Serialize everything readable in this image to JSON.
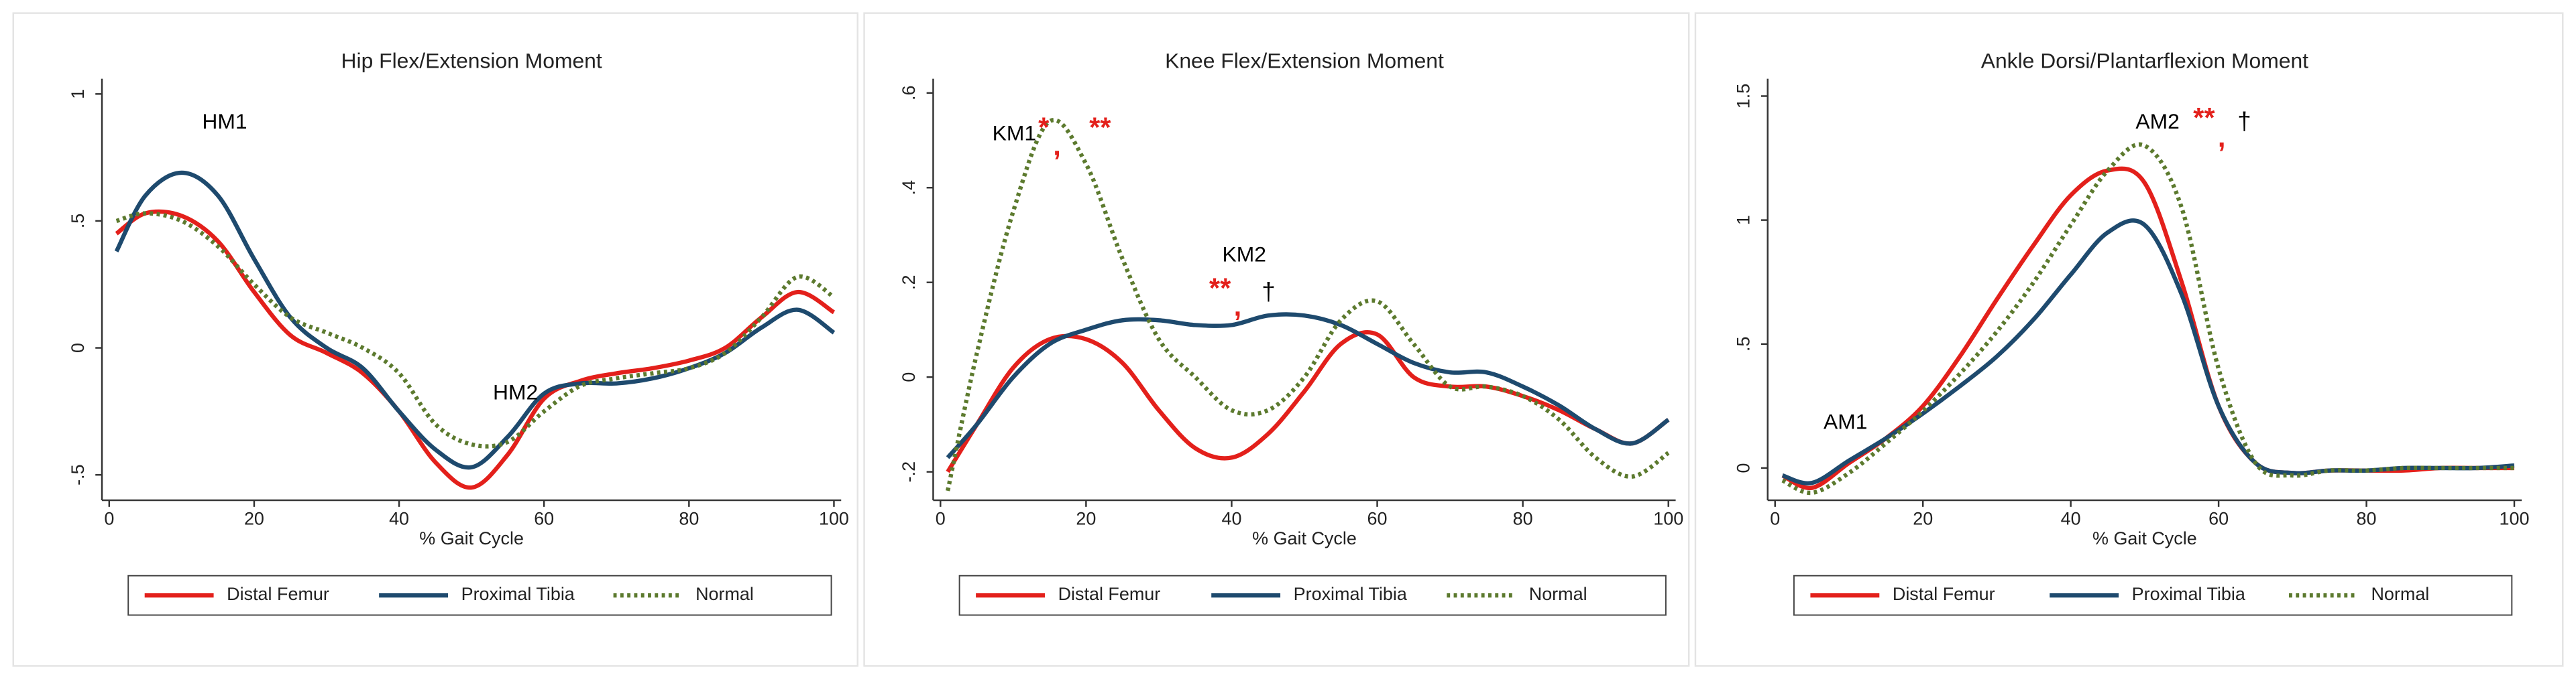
{
  "chart_data": [
    {
      "type": "line",
      "title": "Hip Flex/Extension Moment",
      "x_label": "% Gait Cycle",
      "x": [
        1,
        5,
        10,
        15,
        20,
        25,
        30,
        35,
        40,
        45,
        50,
        55,
        60,
        65,
        70,
        75,
        80,
        85,
        90,
        95,
        100
      ],
      "series": [
        {
          "name": "Distal Femur",
          "color": "#e3201b",
          "style": "solid",
          "values": [
            0.45,
            0.53,
            0.52,
            0.42,
            0.22,
            0.05,
            -0.02,
            -0.1,
            -0.25,
            -0.45,
            -0.55,
            -0.42,
            -0.2,
            -0.13,
            -0.1,
            -0.08,
            -0.05,
            0.0,
            0.12,
            0.22,
            0.14
          ]
        },
        {
          "name": "Proximal Tibia",
          "color": "#1e4a6e",
          "style": "solid",
          "values": [
            0.38,
            0.6,
            0.69,
            0.6,
            0.35,
            0.12,
            0.0,
            -0.08,
            -0.25,
            -0.4,
            -0.47,
            -0.35,
            -0.18,
            -0.14,
            -0.14,
            -0.12,
            -0.08,
            -0.02,
            0.08,
            0.15,
            0.06
          ]
        },
        {
          "name": "Normal",
          "color": "#5c7a2e",
          "style": "dotted",
          "values": [
            0.5,
            0.53,
            0.5,
            0.4,
            0.25,
            0.12,
            0.06,
            0.0,
            -0.1,
            -0.3,
            -0.38,
            -0.37,
            -0.25,
            -0.15,
            -0.12,
            -0.1,
            -0.08,
            -0.02,
            0.12,
            0.28,
            0.2
          ]
        }
      ],
      "xlim": [
        -1,
        101
      ],
      "ylim": [
        -0.6,
        1.06
      ],
      "xticks": [
        0,
        20,
        40,
        60,
        80,
        100
      ],
      "yticks": [
        {
          "value": -0.5,
          "label": "-.5"
        },
        0,
        {
          "value": 0.5,
          "label": ".5"
        },
        1
      ],
      "annotations": [
        {
          "text": "HM1",
          "color": "#000000"
        },
        {
          "text": "HM2",
          "color": "#000000"
        }
      ],
      "legend": "bottom"
    },
    {
      "type": "line",
      "title": "Knee Flex/Extension Moment",
      "x_label": "% Gait Cycle",
      "x": [
        1,
        5,
        10,
        15,
        20,
        25,
        30,
        35,
        40,
        45,
        50,
        55,
        60,
        65,
        70,
        75,
        80,
        85,
        90,
        95,
        100
      ],
      "series": [
        {
          "name": "Distal Femur",
          "color": "#e3201b",
          "style": "solid",
          "values": [
            -0.2,
            -0.1,
            0.02,
            0.08,
            0.08,
            0.03,
            -0.07,
            -0.15,
            -0.17,
            -0.12,
            -0.03,
            0.07,
            0.09,
            0.0,
            -0.02,
            -0.02,
            -0.04,
            -0.07,
            -0.11,
            -0.14,
            -0.09
          ]
        },
        {
          "name": "Proximal Tibia",
          "color": "#1e4a6e",
          "style": "solid",
          "values": [
            -0.17,
            -0.1,
            0.0,
            0.07,
            0.1,
            0.12,
            0.12,
            0.11,
            0.11,
            0.13,
            0.13,
            0.11,
            0.07,
            0.03,
            0.01,
            0.01,
            -0.02,
            -0.06,
            -0.11,
            -0.14,
            -0.09
          ]
        },
        {
          "name": "Normal",
          "color": "#5c7a2e",
          "style": "dotted",
          "values": [
            -0.24,
            0.05,
            0.35,
            0.54,
            0.45,
            0.25,
            0.08,
            0.0,
            -0.07,
            -0.07,
            0.0,
            0.12,
            0.16,
            0.07,
            -0.02,
            -0.02,
            -0.04,
            -0.09,
            -0.17,
            -0.21,
            -0.16
          ]
        }
      ],
      "xlim": [
        -1,
        101
      ],
      "ylim": [
        -0.26,
        0.63
      ],
      "xticks": [
        0,
        20,
        40,
        60,
        80,
        100
      ],
      "yticks": [
        {
          "value": -0.2,
          "label": "-.2"
        },
        0,
        {
          "value": 0.2,
          "label": ".2"
        },
        {
          "value": 0.4,
          "label": ".4"
        },
        {
          "value": 0.6,
          "label": ".6"
        }
      ],
      "annotations": [
        {
          "text": "KM1",
          "color": "#000000"
        },
        {
          "text": "*",
          "color": "#e3201b"
        },
        {
          "text": ",",
          "color": "#e3201b"
        },
        {
          "text": "**",
          "color": "#e3201b"
        },
        {
          "text": "KM2",
          "color": "#000000"
        },
        {
          "text": "**",
          "color": "#e3201b"
        },
        {
          "text": ",",
          "color": "#e3201b"
        },
        {
          "text": "†",
          "color": "#000000"
        }
      ],
      "legend": "bottom"
    },
    {
      "type": "line",
      "title": "Ankle Dorsi/Plantarflexion Moment",
      "x_label": "% Gait Cycle",
      "x": [
        1,
        5,
        10,
        15,
        20,
        25,
        30,
        35,
        40,
        45,
        50,
        55,
        60,
        65,
        70,
        75,
        80,
        85,
        90,
        95,
        100
      ],
      "series": [
        {
          "name": "Distal Femur",
          "color": "#e3201b",
          "style": "solid",
          "values": [
            -0.03,
            -0.08,
            0.02,
            0.12,
            0.25,
            0.45,
            0.68,
            0.9,
            1.1,
            1.2,
            1.15,
            0.75,
            0.25,
            0.02,
            -0.02,
            -0.01,
            -0.01,
            -0.01,
            0.0,
            0.0,
            0.0
          ]
        },
        {
          "name": "Proximal Tibia",
          "color": "#1e4a6e",
          "style": "solid",
          "values": [
            -0.03,
            -0.06,
            0.03,
            0.12,
            0.22,
            0.33,
            0.45,
            0.6,
            0.78,
            0.95,
            0.98,
            0.7,
            0.25,
            0.02,
            -0.02,
            -0.01,
            -0.01,
            0.0,
            0.0,
            0.0,
            0.01
          ]
        },
        {
          "name": "Normal",
          "color": "#5c7a2e",
          "style": "dotted",
          "values": [
            -0.05,
            -0.1,
            -0.02,
            0.1,
            0.23,
            0.38,
            0.55,
            0.75,
            0.98,
            1.2,
            1.3,
            1.05,
            0.4,
            0.02,
            -0.03,
            -0.01,
            -0.01,
            0.0,
            0.0,
            0.0,
            0.0
          ]
        }
      ],
      "xlim": [
        -1,
        101
      ],
      "ylim": [
        -0.13,
        1.57
      ],
      "xticks": [
        0,
        20,
        40,
        60,
        80,
        100
      ],
      "yticks": [
        0,
        {
          "value": 0.5,
          "label": ".5"
        },
        1,
        {
          "value": 1.5,
          "label": "1.5"
        }
      ],
      "annotations": [
        {
          "text": "AM1",
          "color": "#000000"
        },
        {
          "text": "AM2",
          "color": "#000000"
        },
        {
          "text": "**",
          "color": "#e3201b"
        },
        {
          "text": ",",
          "color": "#e3201b"
        },
        {
          "text": "†",
          "color": "#000000"
        }
      ],
      "legend": "bottom"
    }
  ]
}
